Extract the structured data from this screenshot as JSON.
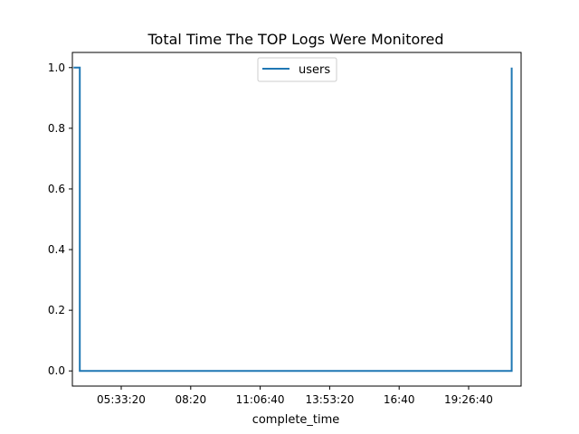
{
  "chart_data": {
    "type": "line",
    "title": "Total Time The TOP Logs Were Monitored",
    "xlabel": "complete_time",
    "ylabel": "",
    "x_ticks": [
      "05:33:20",
      "08:20",
      "11:06:40",
      "13:53:20",
      "16:40",
      "19:26:40"
    ],
    "y_ticks": [
      "0.0",
      "0.2",
      "0.4",
      "0.6",
      "0.8",
      "1.0"
    ],
    "ylim": [
      -0.05,
      1.05
    ],
    "grid": false,
    "legend_position": "top-center",
    "series": [
      {
        "name": "users",
        "color": "#1f77b4",
        "x": [
          "03:39",
          "03:54",
          "03:54",
          "21:10",
          "21:10"
        ],
        "y": [
          1,
          1,
          0,
          0,
          1
        ]
      }
    ]
  }
}
